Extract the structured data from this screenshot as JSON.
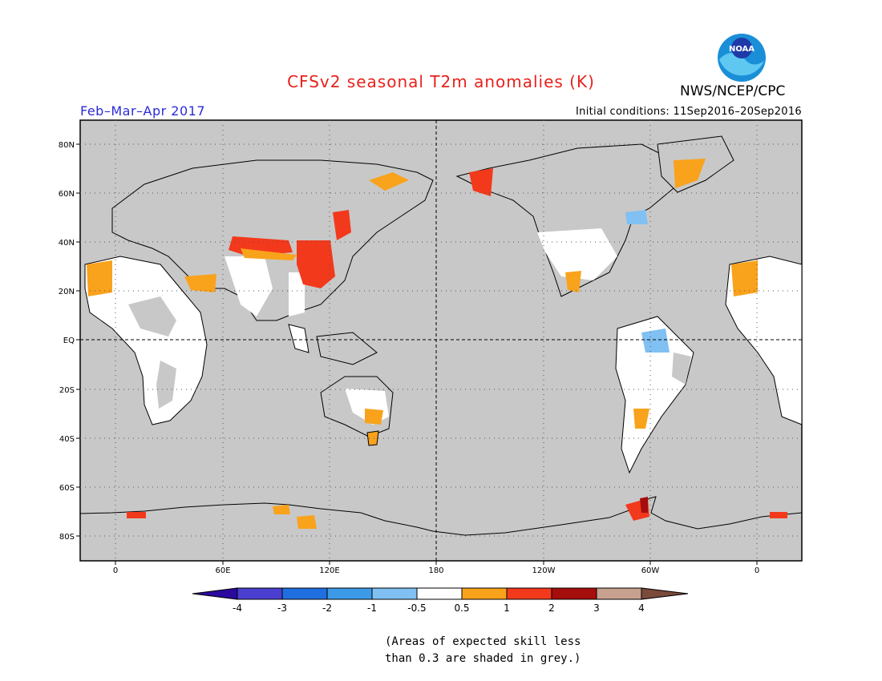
{
  "header": {
    "title": "CFSv2 seasonal T2m anomalies (K)",
    "period": "Feb–Mar–Apr 2017",
    "initial_conditions": "Initial conditions: 11Sep2016–20Sep2016",
    "agency": "NWS/NCEP/CPC",
    "logo_text": "NOAA"
  },
  "map": {
    "lat_labels": [
      "80N",
      "60N",
      "40N",
      "20N",
      "EQ",
      "20S",
      "40S",
      "60S",
      "80S"
    ],
    "lon_labels": [
      "0",
      "60E",
      "120E",
      "180",
      "120W",
      "60W",
      "0"
    ],
    "background_color": "#c8c8c8"
  },
  "legend": {
    "labels": [
      "-4",
      "-3",
      "-2",
      "-1",
      "-0.5",
      "0.5",
      "1",
      "2",
      "3",
      "4"
    ],
    "colors": [
      "#2a0a9e",
      "#4a3fd0",
      "#1f6fe0",
      "#3c9ae8",
      "#80c0f2",
      "#ffffff",
      "#f9a21b",
      "#f3391c",
      "#a50e0c",
      "#c8a090",
      "#7a4a3a"
    ]
  },
  "note": {
    "line1": "(Areas of expected skill less",
    "line2": "than 0.3 are shaded in grey.)"
  }
}
